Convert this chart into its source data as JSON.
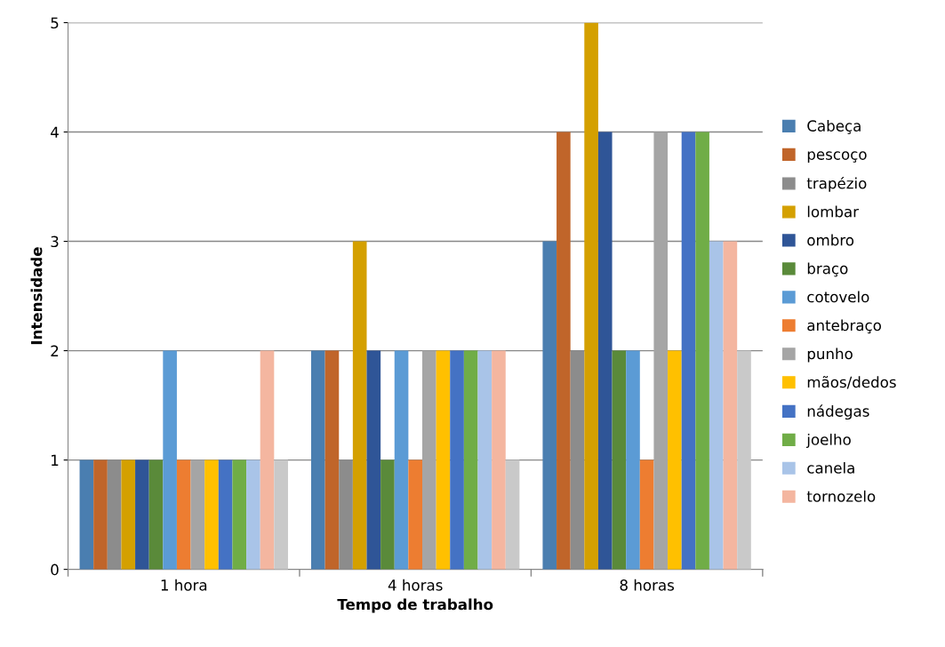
{
  "chart_data": {
    "type": "bar",
    "xlabel": "Tempo de trabalho",
    "ylabel": "Intensidade",
    "categories": [
      "1 hora",
      "4 horas",
      "8 horas"
    ],
    "series": [
      {
        "name": "Cabeça",
        "color": "#4a7eb0",
        "values": [
          1,
          2,
          3
        ]
      },
      {
        "name": "pescoço",
        "color": "#c0652a",
        "values": [
          1,
          2,
          4
        ]
      },
      {
        "name": "trapézio",
        "color": "#8c8c8c",
        "values": [
          1,
          1,
          2
        ]
      },
      {
        "name": "lombar",
        "color": "#d4a000",
        "values": [
          1,
          3,
          5
        ]
      },
      {
        "name": "ombro",
        "color": "#2f5597",
        "values": [
          1,
          2,
          4
        ]
      },
      {
        "name": "braço",
        "color": "#5a8a3a",
        "values": [
          1,
          1,
          2
        ]
      },
      {
        "name": "cotovelo",
        "color": "#5b9bd5",
        "values": [
          2,
          2,
          2
        ]
      },
      {
        "name": "antebraço",
        "color": "#ed7d31",
        "values": [
          1,
          1,
          1
        ]
      },
      {
        "name": "punho",
        "color": "#a5a5a5",
        "values": [
          1,
          2,
          4
        ]
      },
      {
        "name": "mãos/dedos",
        "color": "#ffc000",
        "values": [
          1,
          2,
          2
        ]
      },
      {
        "name": "nádegas",
        "color": "#4472c4",
        "values": [
          1,
          2,
          4
        ]
      },
      {
        "name": "joelho",
        "color": "#70ad47",
        "values": [
          1,
          2,
          4
        ]
      },
      {
        "name": "canela",
        "color": "#a9c4e8",
        "values": [
          1,
          2,
          3
        ]
      },
      {
        "name": "tornozelo",
        "color": "#f4b6a0",
        "values": [
          2,
          2,
          3
        ]
      },
      {
        "color": "#c9c9c9",
        "values": [
          1,
          1,
          2
        ]
      }
    ],
    "ylim": [
      0,
      5
    ],
    "yticks": [
      0,
      1,
      2,
      3,
      4,
      5
    ],
    "grid": "y",
    "legend": "right"
  }
}
